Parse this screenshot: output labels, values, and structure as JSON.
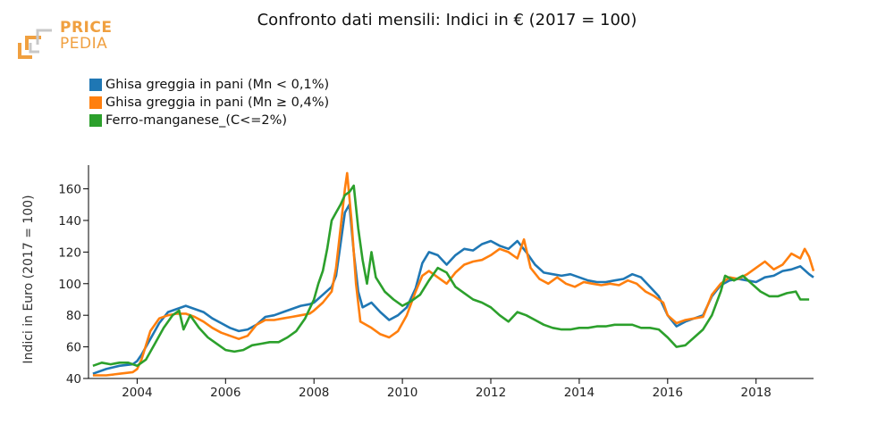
{
  "logo": {
    "word1": "PRICE",
    "word2": "PEDIA",
    "icon": "pricepedia-logo"
  },
  "chart_data": {
    "type": "line",
    "title": "Confronto dati mensili: Indici in € (2017 = 100)",
    "xlabel": "",
    "ylabel": "Indici in Euro (2017 = 100)",
    "xlim": [
      2002.9,
      2019.3
    ],
    "ylim": [
      40,
      175
    ],
    "x_ticks": [
      2004,
      2006,
      2008,
      2010,
      2012,
      2014,
      2016,
      2018
    ],
    "x_tick_labels": [
      "2004",
      "2006",
      "2008",
      "2010",
      "2012",
      "2014",
      "2016",
      "2018"
    ],
    "y_ticks": [
      40,
      60,
      80,
      100,
      120,
      140,
      160
    ],
    "y_tick_labels": [
      "40",
      "60",
      "80",
      "100",
      "120",
      "140",
      "160"
    ],
    "grid": false,
    "legend_position": "top-left",
    "series": [
      {
        "name": "Ghisa greggia in pani (Mn < 0,1%)",
        "color": "#1f77b4",
        "points": [
          [
            2003.0,
            43
          ],
          [
            2003.3,
            46
          ],
          [
            2003.6,
            48
          ],
          [
            2003.9,
            49
          ],
          [
            2004.0,
            51
          ],
          [
            2004.1,
            55
          ],
          [
            2004.3,
            65
          ],
          [
            2004.5,
            75
          ],
          [
            2004.7,
            82
          ],
          [
            2004.9,
            84
          ],
          [
            2005.1,
            86
          ],
          [
            2005.3,
            84
          ],
          [
            2005.5,
            82
          ],
          [
            2005.7,
            78
          ],
          [
            2005.9,
            75
          ],
          [
            2006.1,
            72
          ],
          [
            2006.3,
            70
          ],
          [
            2006.5,
            71
          ],
          [
            2006.7,
            74
          ],
          [
            2006.9,
            79
          ],
          [
            2007.1,
            80
          ],
          [
            2007.3,
            82
          ],
          [
            2007.5,
            84
          ],
          [
            2007.7,
            86
          ],
          [
            2007.9,
            87
          ],
          [
            2008.0,
            88
          ],
          [
            2008.2,
            93
          ],
          [
            2008.4,
            98
          ],
          [
            2008.5,
            105
          ],
          [
            2008.6,
            125
          ],
          [
            2008.7,
            145
          ],
          [
            2008.8,
            150
          ],
          [
            2008.9,
            120
          ],
          [
            2009.0,
            95
          ],
          [
            2009.1,
            85
          ],
          [
            2009.3,
            88
          ],
          [
            2009.5,
            82
          ],
          [
            2009.7,
            77
          ],
          [
            2009.9,
            80
          ],
          [
            2010.1,
            85
          ],
          [
            2010.3,
            97
          ],
          [
            2010.45,
            113
          ],
          [
            2010.6,
            120
          ],
          [
            2010.8,
            118
          ],
          [
            2011.0,
            112
          ],
          [
            2011.2,
            118
          ],
          [
            2011.4,
            122
          ],
          [
            2011.6,
            121
          ],
          [
            2011.8,
            125
          ],
          [
            2012.0,
            127
          ],
          [
            2012.2,
            124
          ],
          [
            2012.4,
            122
          ],
          [
            2012.6,
            127
          ],
          [
            2012.8,
            120
          ],
          [
            2013.0,
            112
          ],
          [
            2013.2,
            107
          ],
          [
            2013.4,
            106
          ],
          [
            2013.6,
            105
          ],
          [
            2013.8,
            106
          ],
          [
            2014.0,
            104
          ],
          [
            2014.2,
            102
          ],
          [
            2014.4,
            101
          ],
          [
            2014.6,
            101
          ],
          [
            2014.8,
            102
          ],
          [
            2015.0,
            103
          ],
          [
            2015.2,
            106
          ],
          [
            2015.4,
            104
          ],
          [
            2015.6,
            98
          ],
          [
            2015.8,
            92
          ],
          [
            2016.0,
            80
          ],
          [
            2016.2,
            73
          ],
          [
            2016.4,
            76
          ],
          [
            2016.6,
            78
          ],
          [
            2016.8,
            80
          ],
          [
            2017.0,
            92
          ],
          [
            2017.2,
            99
          ],
          [
            2017.4,
            102
          ],
          [
            2017.6,
            103
          ],
          [
            2017.8,
            102
          ],
          [
            2018.0,
            101
          ],
          [
            2018.2,
            104
          ],
          [
            2018.4,
            105
          ],
          [
            2018.6,
            108
          ],
          [
            2018.8,
            109
          ],
          [
            2019.0,
            111
          ],
          [
            2019.2,
            106
          ],
          [
            2019.3,
            104
          ]
        ]
      },
      {
        "name": "Ghisa greggia in pani (Mn ≥ 0,4%)",
        "color": "#ff7f0e",
        "points": [
          [
            2003.0,
            42
          ],
          [
            2003.3,
            42
          ],
          [
            2003.6,
            43
          ],
          [
            2003.9,
            44
          ],
          [
            2004.0,
            46
          ],
          [
            2004.1,
            52
          ],
          [
            2004.3,
            70
          ],
          [
            2004.5,
            78
          ],
          [
            2004.7,
            80
          ],
          [
            2004.9,
            81
          ],
          [
            2005.1,
            81
          ],
          [
            2005.3,
            79
          ],
          [
            2005.5,
            76
          ],
          [
            2005.7,
            72
          ],
          [
            2005.9,
            69
          ],
          [
            2006.1,
            67
          ],
          [
            2006.3,
            65
          ],
          [
            2006.5,
            67
          ],
          [
            2006.7,
            74
          ],
          [
            2006.9,
            77
          ],
          [
            2007.1,
            77
          ],
          [
            2007.3,
            78
          ],
          [
            2007.5,
            79
          ],
          [
            2007.7,
            80
          ],
          [
            2007.9,
            81
          ],
          [
            2008.0,
            83
          ],
          [
            2008.2,
            88
          ],
          [
            2008.4,
            95
          ],
          [
            2008.5,
            110
          ],
          [
            2008.6,
            135
          ],
          [
            2008.7,
            160
          ],
          [
            2008.75,
            170
          ],
          [
            2008.85,
            140
          ],
          [
            2008.95,
            100
          ],
          [
            2009.05,
            76
          ],
          [
            2009.3,
            72
          ],
          [
            2009.5,
            68
          ],
          [
            2009.7,
            66
          ],
          [
            2009.9,
            70
          ],
          [
            2010.1,
            80
          ],
          [
            2010.3,
            95
          ],
          [
            2010.45,
            105
          ],
          [
            2010.6,
            108
          ],
          [
            2010.8,
            104
          ],
          [
            2011.0,
            100
          ],
          [
            2011.2,
            107
          ],
          [
            2011.4,
            112
          ],
          [
            2011.6,
            114
          ],
          [
            2011.8,
            115
          ],
          [
            2012.0,
            118
          ],
          [
            2012.2,
            122
          ],
          [
            2012.4,
            120
          ],
          [
            2012.6,
            116
          ],
          [
            2012.75,
            128
          ],
          [
            2012.9,
            110
          ],
          [
            2013.1,
            103
          ],
          [
            2013.3,
            100
          ],
          [
            2013.5,
            104
          ],
          [
            2013.7,
            100
          ],
          [
            2013.9,
            98
          ],
          [
            2014.1,
            101
          ],
          [
            2014.3,
            100
          ],
          [
            2014.5,
            99
          ],
          [
            2014.7,
            100
          ],
          [
            2014.9,
            99
          ],
          [
            2015.1,
            102
          ],
          [
            2015.3,
            100
          ],
          [
            2015.5,
            95
          ],
          [
            2015.7,
            92
          ],
          [
            2015.9,
            88
          ],
          [
            2016.0,
            80
          ],
          [
            2016.2,
            75
          ],
          [
            2016.4,
            77
          ],
          [
            2016.6,
            78
          ],
          [
            2016.8,
            79
          ],
          [
            2017.0,
            93
          ],
          [
            2017.2,
            100
          ],
          [
            2017.4,
            104
          ],
          [
            2017.6,
            103
          ],
          [
            2017.8,
            106
          ],
          [
            2018.0,
            110
          ],
          [
            2018.2,
            114
          ],
          [
            2018.4,
            109
          ],
          [
            2018.6,
            112
          ],
          [
            2018.8,
            119
          ],
          [
            2019.0,
            116
          ],
          [
            2019.1,
            122
          ],
          [
            2019.2,
            117
          ],
          [
            2019.3,
            108
          ]
        ]
      },
      {
        "name": "Ferro-manganese_(C<=2%)",
        "color": "#2ca02c",
        "points": [
          [
            2003.0,
            48
          ],
          [
            2003.2,
            50
          ],
          [
            2003.4,
            49
          ],
          [
            2003.6,
            50
          ],
          [
            2003.8,
            50
          ],
          [
            2004.0,
            48
          ],
          [
            2004.2,
            52
          ],
          [
            2004.4,
            62
          ],
          [
            2004.6,
            72
          ],
          [
            2004.8,
            80
          ],
          [
            2004.95,
            83
          ],
          [
            2005.05,
            71
          ],
          [
            2005.2,
            80
          ],
          [
            2005.4,
            72
          ],
          [
            2005.6,
            66
          ],
          [
            2005.8,
            62
          ],
          [
            2006.0,
            58
          ],
          [
            2006.2,
            57
          ],
          [
            2006.4,
            58
          ],
          [
            2006.6,
            61
          ],
          [
            2006.8,
            62
          ],
          [
            2007.0,
            63
          ],
          [
            2007.2,
            63
          ],
          [
            2007.4,
            66
          ],
          [
            2007.6,
            70
          ],
          [
            2007.8,
            78
          ],
          [
            2008.0,
            90
          ],
          [
            2008.1,
            100
          ],
          [
            2008.2,
            108
          ],
          [
            2008.3,
            122
          ],
          [
            2008.4,
            140
          ],
          [
            2008.5,
            145
          ],
          [
            2008.6,
            150
          ],
          [
            2008.7,
            156
          ],
          [
            2008.8,
            158
          ],
          [
            2008.9,
            162
          ],
          [
            2009.0,
            135
          ],
          [
            2009.1,
            115
          ],
          [
            2009.2,
            100
          ],
          [
            2009.3,
            120
          ],
          [
            2009.4,
            104
          ],
          [
            2009.6,
            95
          ],
          [
            2009.8,
            90
          ],
          [
            2010.0,
            86
          ],
          [
            2010.2,
            89
          ],
          [
            2010.4,
            93
          ],
          [
            2010.6,
            102
          ],
          [
            2010.8,
            110
          ],
          [
            2011.0,
            107
          ],
          [
            2011.2,
            98
          ],
          [
            2011.4,
            94
          ],
          [
            2011.6,
            90
          ],
          [
            2011.8,
            88
          ],
          [
            2012.0,
            85
          ],
          [
            2012.2,
            80
          ],
          [
            2012.4,
            76
          ],
          [
            2012.6,
            82
          ],
          [
            2012.8,
            80
          ],
          [
            2013.0,
            77
          ],
          [
            2013.2,
            74
          ],
          [
            2013.4,
            72
          ],
          [
            2013.6,
            71
          ],
          [
            2013.8,
            71
          ],
          [
            2014.0,
            72
          ],
          [
            2014.2,
            72
          ],
          [
            2014.4,
            73
          ],
          [
            2014.6,
            73
          ],
          [
            2014.8,
            74
          ],
          [
            2015.0,
            74
          ],
          [
            2015.2,
            74
          ],
          [
            2015.4,
            72
          ],
          [
            2015.6,
            72
          ],
          [
            2015.8,
            71
          ],
          [
            2016.0,
            66
          ],
          [
            2016.2,
            60
          ],
          [
            2016.4,
            61
          ],
          [
            2016.6,
            66
          ],
          [
            2016.8,
            71
          ],
          [
            2017.0,
            80
          ],
          [
            2017.2,
            95
          ],
          [
            2017.3,
            105
          ],
          [
            2017.5,
            102
          ],
          [
            2017.7,
            105
          ],
          [
            2017.9,
            100
          ],
          [
            2018.1,
            95
          ],
          [
            2018.3,
            92
          ],
          [
            2018.5,
            92
          ],
          [
            2018.7,
            94
          ],
          [
            2018.9,
            95
          ],
          [
            2019.0,
            90
          ],
          [
            2019.2,
            90
          ]
        ]
      }
    ]
  }
}
